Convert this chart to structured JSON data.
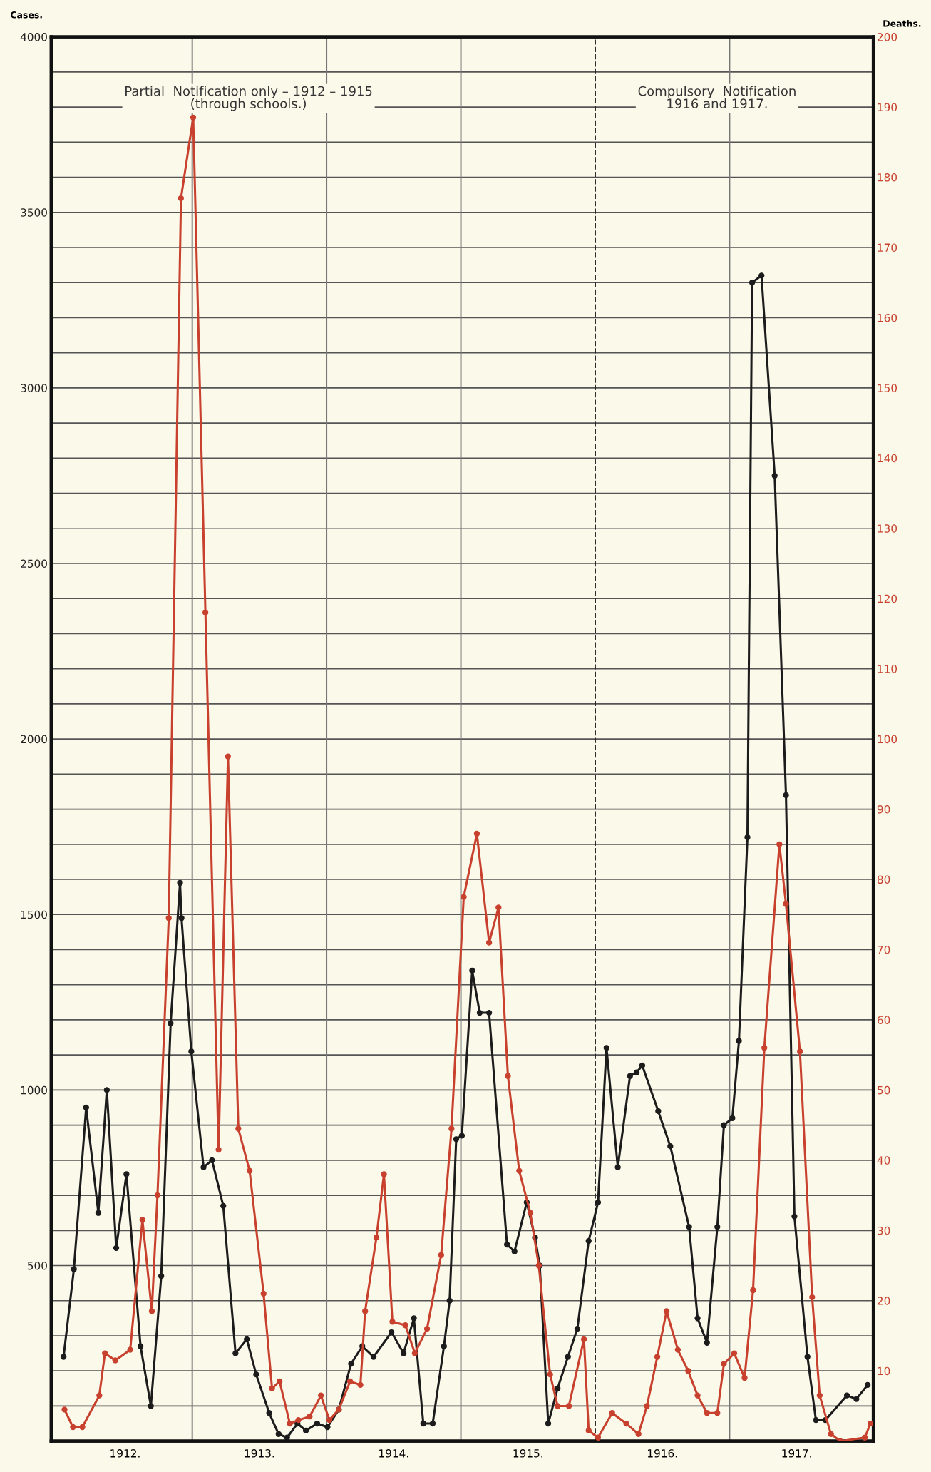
{
  "chart_data": {
    "type": "line",
    "ylabel": "Cases.",
    "y2label": "Deaths.",
    "annotations": [
      "Partial  Notification only – 1912 – 1915\n(through schools.)",
      "Compulsory  Notification\n1916 and 1917."
    ],
    "series": [
      {
        "name": null,
        "color": "#1c1c1c",
        "axis": "y",
        "x": [
          1912.042,
          1912.119,
          1912.21,
          1912.301,
          1912.364,
          1912.434,
          1912.51,
          1912.615,
          1912.692,
          1912.769,
          1912.839,
          1912.909,
          1912.92,
          1912.993,
          1913.084,
          1913.147,
          1913.231,
          1913.322,
          1913.406,
          1913.476,
          1913.573,
          1913.643,
          1913.706,
          1913.783,
          1913.846,
          1913.93,
          1914.007,
          1914.091,
          1914.182,
          1914.266,
          1914.35,
          1914.483,
          1914.573,
          1914.65,
          1914.72,
          1914.79,
          1914.874,
          1914.916,
          1914.965,
          1915.007,
          1915.084,
          1915.14,
          1915.21,
          1915.343,
          1915.399,
          1915.49,
          1915.552,
          1915.587,
          1915.65,
          1915.72,
          1915.797,
          1915.867,
          1915.951,
          1916.021,
          1916.084,
          1916.168,
          1916.259,
          1916.308,
          1916.35,
          1916.469,
          1916.559,
          1916.699,
          1916.762,
          1916.832,
          1916.909,
          1916.958,
          1917.021,
          1917.07,
          1917.133,
          1917.168,
          1917.238,
          1917.336,
          1917.42,
          1917.483,
          1917.58,
          1917.643,
          1917.713,
          1917.874,
          1917.944,
          1918.028
        ],
        "values": [
          240,
          490,
          950,
          650,
          1000,
          550,
          760,
          270,
          100,
          470,
          1190,
          1590,
          1490,
          1110,
          780,
          800,
          670,
          250,
          290,
          190,
          80,
          20,
          10,
          50,
          30,
          50,
          40,
          90,
          220,
          270,
          240,
          310,
          250,
          350,
          50,
          50,
          270,
          400,
          860,
          870,
          1340,
          1220,
          1220,
          560,
          540,
          680,
          580,
          500,
          50,
          150,
          240,
          320,
          570,
          680,
          1120,
          780,
          1040,
          1050,
          1070,
          940,
          840,
          610,
          350,
          280,
          610,
          900,
          920,
          1140,
          1720,
          3300,
          3320,
          2750,
          1840,
          640,
          240,
          60,
          60,
          130,
          120,
          160
        ]
      },
      {
        "name": null,
        "color": "#c8412e",
        "axis": "y2",
        "x": [
          1912.049,
          1912.112,
          1912.182,
          1912.308,
          1912.35,
          1912.427,
          1912.538,
          1912.629,
          1912.699,
          1912.741,
          1912.825,
          1912.916,
          1913.007,
          1913.098,
          1913.196,
          1913.266,
          1913.343,
          1913.427,
          1913.531,
          1913.594,
          1913.65,
          1913.727,
          1913.79,
          1913.874,
          1913.958,
          1914.021,
          1914.091,
          1914.175,
          1914.252,
          1914.287,
          1914.371,
          1914.427,
          1914.49,
          1914.587,
          1914.657,
          1914.748,
          1914.853,
          1914.93,
          1915.021,
          1915.119,
          1915.21,
          1915.28,
          1915.35,
          1915.434,
          1915.517,
          1915.58,
          1915.664,
          1915.72,
          1915.804,
          1915.916,
          1915.951,
          1916.021,
          1916.126,
          1916.231,
          1916.322,
          1916.385,
          1916.462,
          1916.531,
          1916.615,
          1916.692,
          1916.762,
          1916.832,
          1916.909,
          1916.958,
          1917.035,
          1917.112,
          1917.175,
          1917.259,
          1917.371,
          1917.42,
          1917.524,
          1917.615,
          1917.671,
          1917.755,
          1917.825,
          1918.007,
          1918.049
        ],
        "values": [
          4.5,
          2,
          2,
          6.5,
          12.5,
          11.5,
          13,
          31.5,
          18.5,
          35,
          74.5,
          177,
          188.5,
          118,
          41.5,
          97.5,
          44.5,
          38.5,
          21,
          7.5,
          8.5,
          2.5,
          3,
          3.5,
          6.5,
          3,
          4.5,
          8.5,
          8,
          18.5,
          29,
          38,
          17,
          16.5,
          12.5,
          16,
          26.5,
          44.5,
          77.5,
          86.5,
          71,
          76,
          52,
          38.5,
          32.5,
          25,
          9.5,
          5,
          5,
          14.5,
          1.5,
          0.5,
          4,
          2.5,
          1,
          5,
          12,
          18.5,
          13,
          10,
          6.5,
          4,
          4,
          11,
          12.5,
          9,
          21.5,
          56,
          85,
          76.5,
          55.5,
          20.5,
          6.5,
          1,
          0,
          0.5,
          2.5
        ]
      }
    ],
    "xlim": [
      1911.95,
      1918.07
    ],
    "xticks": [
      {
        "value": 1912.5,
        "label": "1912."
      },
      {
        "value": 1913.5,
        "label": "1913."
      },
      {
        "value": 1914.5,
        "label": "1914."
      },
      {
        "value": 1915.5,
        "label": "1915."
      },
      {
        "value": 1916.5,
        "label": "1916."
      },
      {
        "value": 1917.5,
        "label": "1917."
      }
    ],
    "ylim": [
      0,
      4000
    ],
    "yticks": [
      {
        "value": 0,
        "label": null
      },
      {
        "value": 100,
        "label": null
      },
      {
        "value": 200,
        "label": null
      },
      {
        "value": 300,
        "label": null
      },
      {
        "value": 400,
        "label": null
      },
      500,
      {
        "value": 600,
        "label": null
      },
      {
        "value": 700,
        "label": null
      },
      {
        "value": 800,
        "label": null
      },
      {
        "value": 900,
        "label": null
      },
      1000,
      {
        "value": 1100,
        "label": null
      },
      {
        "value": 1200,
        "label": null
      },
      {
        "value": 1300,
        "label": null
      },
      {
        "value": 1400,
        "label": null
      },
      1500,
      {
        "value": 1600,
        "label": null
      },
      {
        "value": 1700,
        "label": null
      },
      {
        "value": 1800,
        "label": null
      },
      {
        "value": 1900,
        "label": null
      },
      2000,
      {
        "value": 2100,
        "label": null
      },
      {
        "value": 2200,
        "label": null
      },
      {
        "value": 2300,
        "label": null
      },
      {
        "value": 2400,
        "label": null
      },
      2500,
      {
        "value": 2600,
        "label": null
      },
      {
        "value": 2700,
        "label": null
      },
      {
        "value": 2800,
        "label": null
      },
      {
        "value": 2900,
        "label": null
      },
      3000,
      {
        "value": 3100,
        "label": null
      },
      {
        "value": 3200,
        "label": null
      },
      {
        "value": 3300,
        "label": null
      },
      {
        "value": 3400,
        "label": null
      },
      3500,
      {
        "value": 3600,
        "label": null
      },
      {
        "value": 3700,
        "label": null
      },
      {
        "value": 3800,
        "label": null
      },
      {
        "value": 3900,
        "label": null
      },
      4000
    ],
    "y2lim": [
      0,
      200
    ],
    "y2ticks": [
      10,
      20,
      30,
      40,
      50,
      60,
      70,
      80,
      90,
      100,
      110,
      120,
      130,
      140,
      150,
      160,
      170,
      180,
      190,
      200
    ],
    "ref_lines": [
      {
        "axis": "x",
        "value": 1913,
        "label": null,
        "color": "#777777",
        "line_style": "solid"
      },
      {
        "axis": "x",
        "value": 1914,
        "label": null,
        "color": "#777777",
        "line_style": "solid"
      },
      {
        "axis": "x",
        "value": 1915,
        "label": null,
        "color": "#777777",
        "line_style": "solid"
      },
      {
        "axis": "x",
        "value": 1916,
        "label": null,
        "color": "#222222",
        "line_style": "dashed"
      },
      {
        "axis": "x",
        "value": 1917,
        "label": null,
        "color": "#777777",
        "line_style": "solid"
      }
    ],
    "grid": "y",
    "marker": "circle",
    "line_style": "solid"
  }
}
